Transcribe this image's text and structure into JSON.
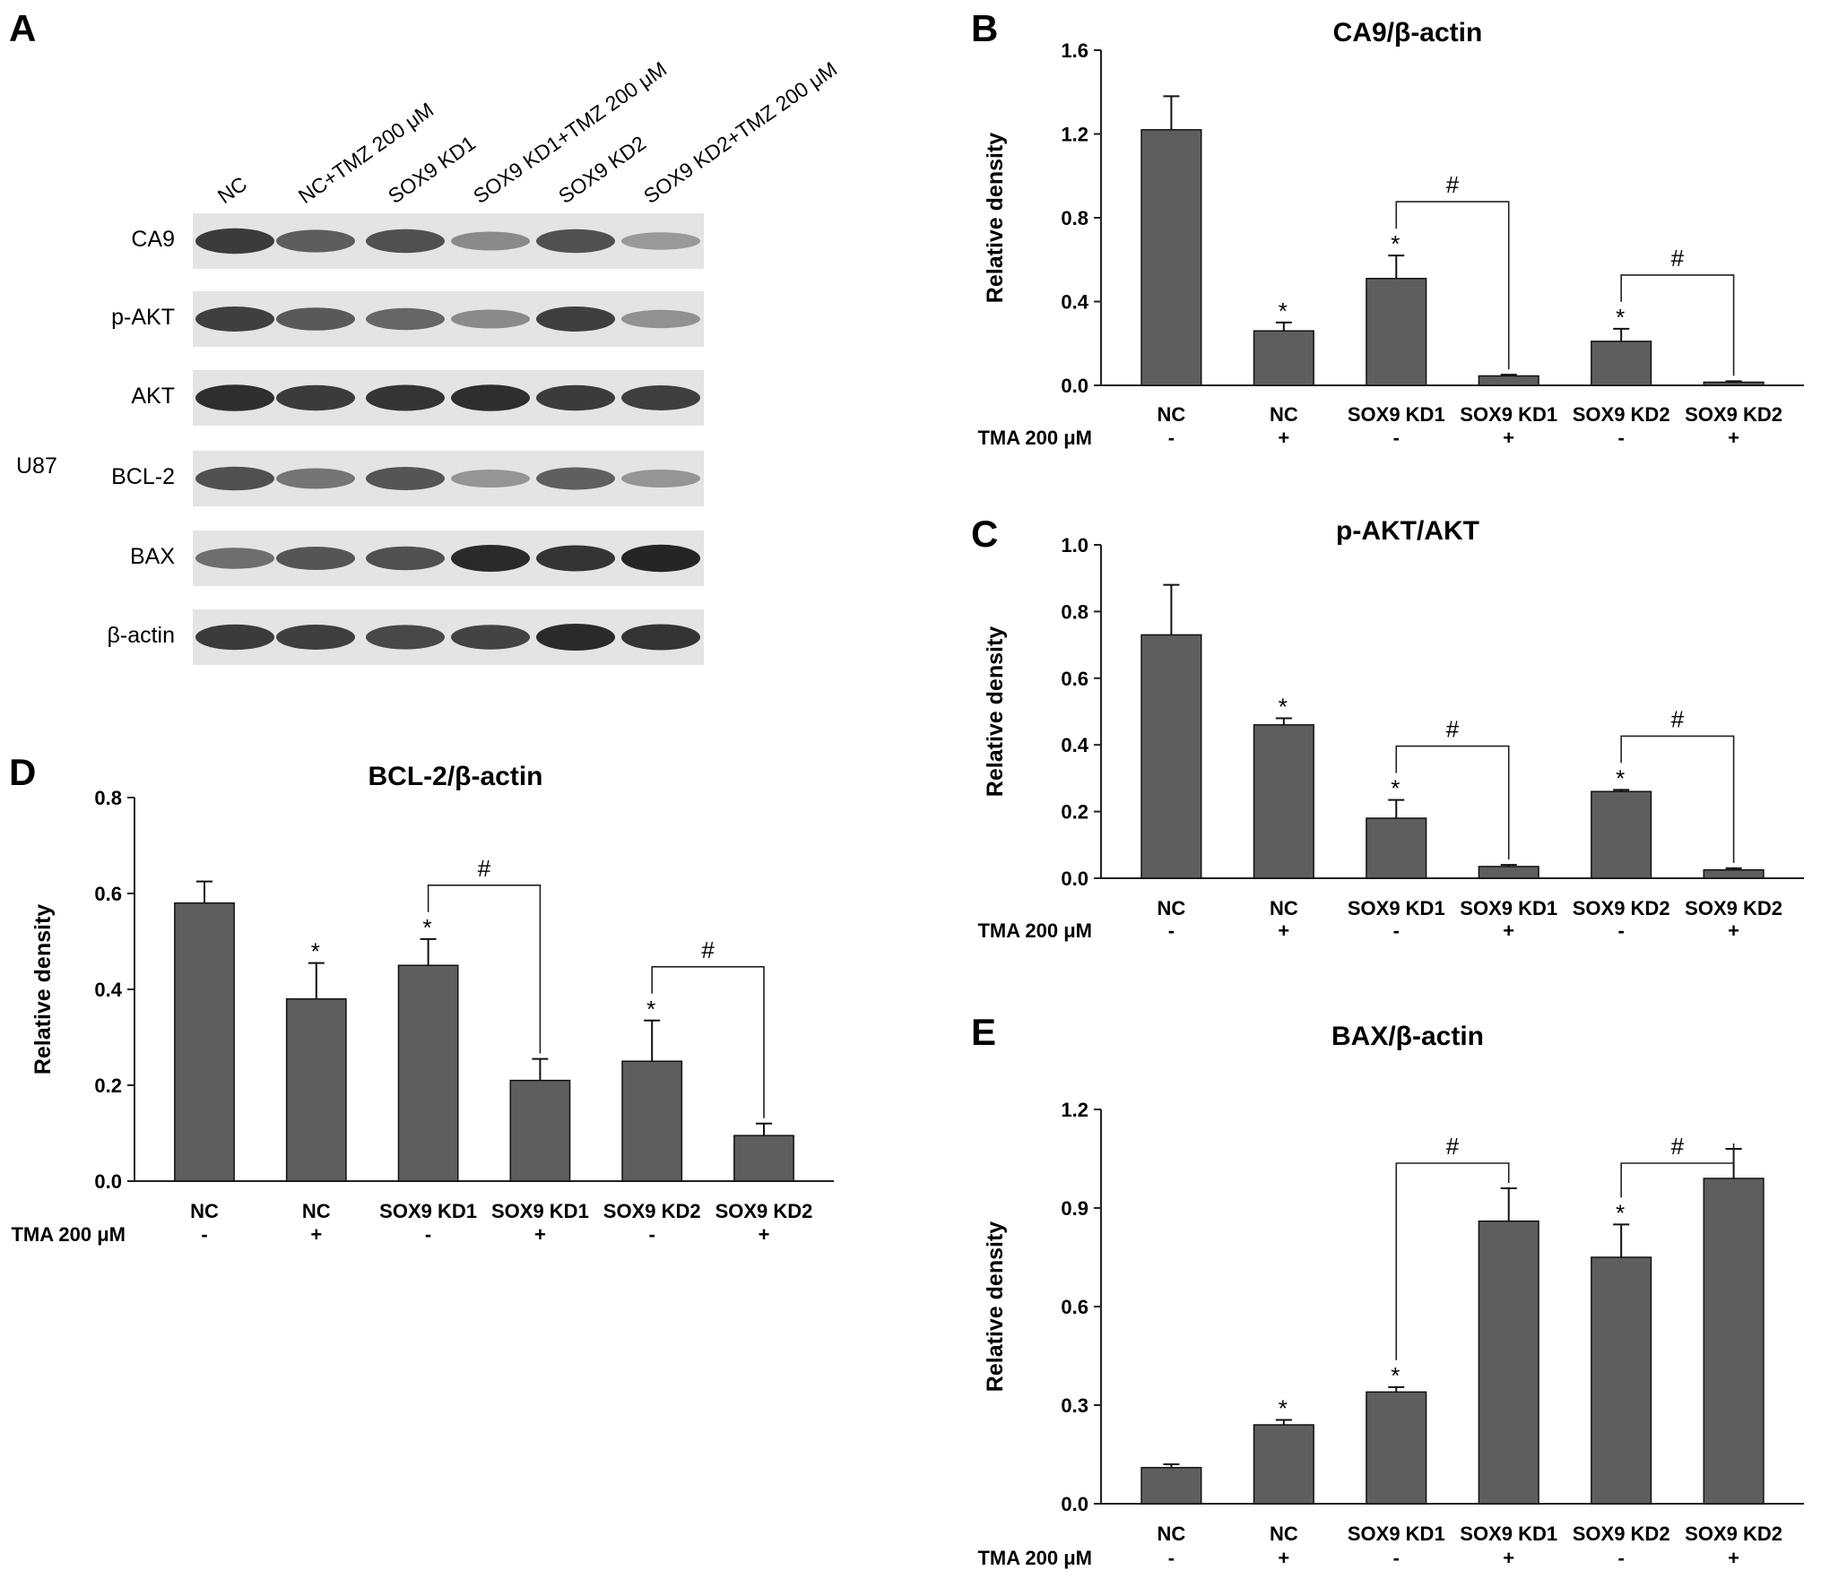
{
  "panels": {
    "A": "A",
    "B": "B",
    "C": "C",
    "D": "D",
    "E": "E"
  },
  "blot": {
    "cell_line": "U87",
    "lanes": [
      "NC",
      "NC+TMZ 200 μM",
      "SOX9 KD1",
      "SOX9 KD1+TMZ 200 μM",
      "SOX9 KD2",
      "SOX9 KD2+TMZ 200 μM"
    ],
    "rows": [
      {
        "label": "CA9",
        "intensity": [
          0.82,
          0.66,
          0.72,
          0.45,
          0.72,
          0.38
        ]
      },
      {
        "label": "p-AKT",
        "intensity": [
          0.8,
          0.68,
          0.62,
          0.45,
          0.8,
          0.42
        ]
      },
      {
        "label": "AKT",
        "intensity": [
          0.88,
          0.82,
          0.85,
          0.88,
          0.82,
          0.8
        ]
      },
      {
        "label": "BCL-2",
        "intensity": [
          0.72,
          0.55,
          0.7,
          0.4,
          0.65,
          0.4
        ]
      },
      {
        "label": "BAX",
        "intensity": [
          0.58,
          0.7,
          0.72,
          0.9,
          0.85,
          0.92
        ]
      },
      {
        "label": "β-actin",
        "intensity": [
          0.82,
          0.8,
          0.76,
          0.78,
          0.9,
          0.85
        ]
      }
    ]
  },
  "chart_data": [
    {
      "panel": "B",
      "type": "bar",
      "title": "CA9/β-actin",
      "ylabel": "Relative density",
      "treatment_label": "TMA 200 μM",
      "ylim": [
        0,
        1.6
      ],
      "yticks": [
        "0.0",
        "0.4",
        "0.8",
        "1.2",
        "1.6"
      ],
      "categories": [
        "NC",
        "NC",
        "SOX9  KD1",
        "SOX9  KD1",
        "SOX9  KD2",
        "SOX9  KD2"
      ],
      "treatment": [
        "-",
        "+",
        "-",
        "+",
        "-",
        "+"
      ],
      "values": [
        1.22,
        0.26,
        0.51,
        0.045,
        0.21,
        0.015
      ],
      "errors": [
        0.16,
        0.04,
        0.11,
        0.006,
        0.06,
        0.005
      ],
      "stars": [
        "",
        "*",
        "*",
        "",
        "*",
        ""
      ],
      "brackets": [
        {
          "from": 2,
          "to": 3,
          "label": "#"
        },
        {
          "from": 4,
          "to": 5,
          "label": "#"
        }
      ]
    },
    {
      "panel": "C",
      "type": "bar",
      "title": "p-AKT/AKT",
      "ylabel": "Relative density",
      "treatment_label": "TMA 200 μM",
      "ylim": [
        0,
        1.0
      ],
      "yticks": [
        "0.0",
        "0.2",
        "0.4",
        "0.6",
        "0.8",
        "1.0"
      ],
      "categories": [
        "NC",
        "NC",
        "SOX9  KD1",
        "SOX9  KD1",
        "SOX9  KD2",
        "SOX9  KD2"
      ],
      "treatment": [
        "-",
        "+",
        "-",
        "+",
        "-",
        "+"
      ],
      "values": [
        0.73,
        0.46,
        0.18,
        0.035,
        0.26,
        0.025
      ],
      "errors": [
        0.15,
        0.02,
        0.055,
        0.005,
        0.005,
        0.005
      ],
      "stars": [
        "",
        "*",
        "*",
        "",
        "*",
        ""
      ],
      "brackets": [
        {
          "from": 2,
          "to": 3,
          "label": "#"
        },
        {
          "from": 4,
          "to": 5,
          "label": "#"
        }
      ]
    },
    {
      "panel": "D",
      "type": "bar",
      "title": "BCL-2/β-actin",
      "ylabel": "Relative density",
      "treatment_label": "TMA 200 μM",
      "ylim": [
        0,
        0.8
      ],
      "yticks": [
        "0.0",
        "0.2",
        "0.4",
        "0.6",
        "0.8"
      ],
      "categories": [
        "NC",
        "NC",
        "SOX9  KD1",
        "SOX9  KD1",
        "SOX9  KD2",
        "SOX9  KD2"
      ],
      "treatment": [
        "-",
        "+",
        "-",
        "+",
        "-",
        "+"
      ],
      "values": [
        0.58,
        0.38,
        0.45,
        0.21,
        0.25,
        0.095
      ],
      "errors": [
        0.045,
        0.075,
        0.055,
        0.045,
        0.085,
        0.025
      ],
      "stars": [
        "",
        "*",
        "*",
        "",
        "*",
        ""
      ],
      "brackets": [
        {
          "from": 2,
          "to": 3,
          "label": "#"
        },
        {
          "from": 4,
          "to": 5,
          "label": "#"
        }
      ]
    },
    {
      "panel": "E",
      "type": "bar",
      "title": "BAX/β-actin",
      "ylabel": "Relative density",
      "treatment_label": "TMA 200 μM",
      "ylim": [
        0,
        1.2
      ],
      "yticks": [
        "0.0",
        "0.3",
        "0.6",
        "0.9",
        "1.2"
      ],
      "categories": [
        "NC",
        "NC",
        "SOX9  KD1",
        "SOX9  KD1",
        "SOX9  KD2",
        "SOX9  KD2"
      ],
      "treatment": [
        "-",
        "+",
        "-",
        "+",
        "-",
        "+"
      ],
      "values": [
        0.11,
        0.24,
        0.34,
        0.86,
        0.75,
        0.99
      ],
      "errors": [
        0.01,
        0.015,
        0.015,
        0.1,
        0.1,
        0.09
      ],
      "stars": [
        "",
        "*",
        "*",
        "",
        "*",
        ""
      ],
      "brackets": [
        {
          "from": 2,
          "to": 3,
          "label": "#"
        },
        {
          "from": 4,
          "to": 5,
          "label": "#"
        }
      ]
    }
  ]
}
